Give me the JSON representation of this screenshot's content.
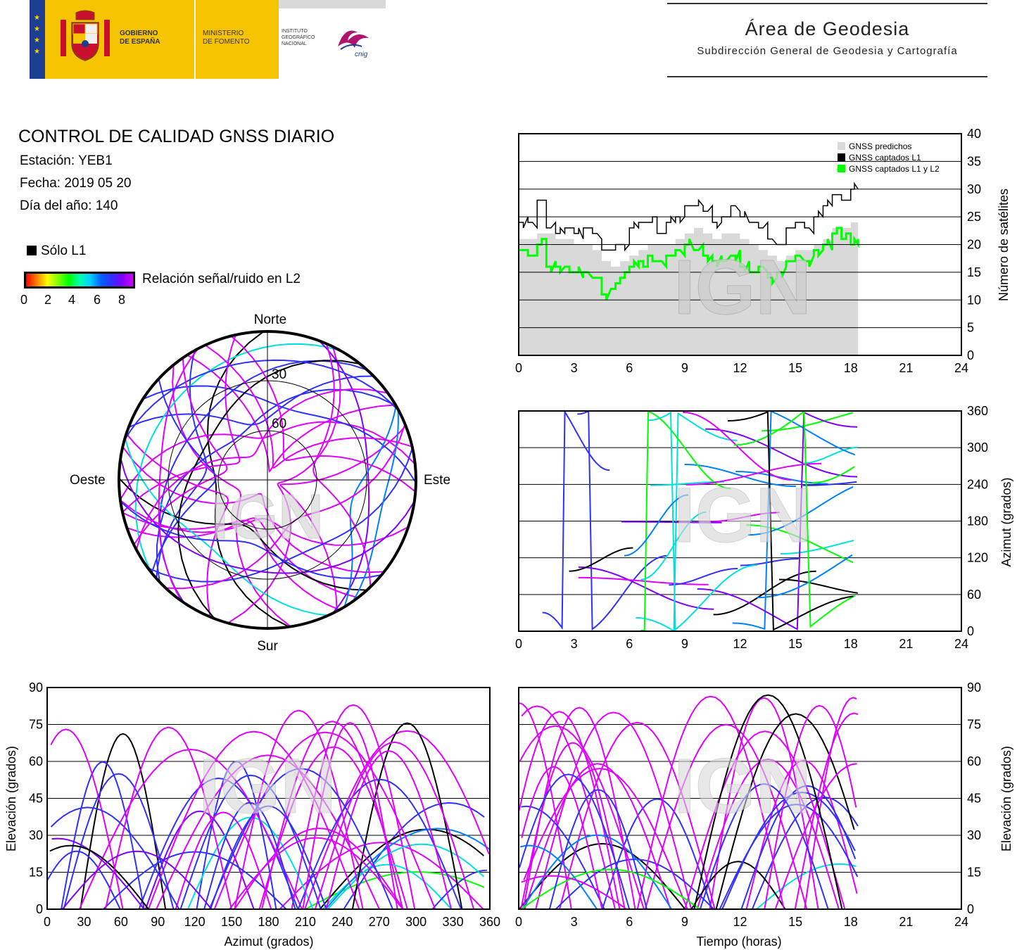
{
  "header": {
    "gobierno": [
      "GOBIERNO",
      "DE ESPAÑA"
    ],
    "ministerio": [
      "MINISTERIO",
      "DE FOMENTO"
    ],
    "instituto": [
      "INSTITUTO",
      "GEOGRÁFICO",
      "NACIONAL"
    ],
    "cnig_logo_text": "cnig",
    "area_title": "Área de Geodesia",
    "area_subtitle": "Subdirección General de Geodesia y Cartografía"
  },
  "report": {
    "title": "CONTROL DE CALIDAD GNSS DIARIO",
    "station": "Estación: YEB1",
    "date": "Fecha: 2019 05 20",
    "doy": "Día del año: 140"
  },
  "legend": {
    "l1_only": "Sólo L1",
    "snr_label": "Relación señal/ruido en L2",
    "snr_ticks": [
      "0",
      "2",
      "4",
      "6",
      "8"
    ]
  },
  "watermark": "IGN",
  "colors": {
    "snr_scale": [
      "#ff0000",
      "#ff8000",
      "#ffff00",
      "#00ff00",
      "#00e0e0",
      "#0080ff",
      "#3030ff",
      "#8000ff",
      "#e000ff"
    ],
    "l1_only": "#000000",
    "predicted": "#d9d9d9",
    "captured_l1": "#000000",
    "captured_l1l2": "#00ff00"
  },
  "chart_data": [
    {
      "id": "sat-count",
      "type": "line",
      "title": "",
      "xlabel": "",
      "ylabel": "Número de satélites",
      "xlim": [
        0,
        24
      ],
      "ylim": [
        0,
        40
      ],
      "xticks": [
        "0",
        "3",
        "6",
        "9",
        "12",
        "15",
        "18",
        "21",
        "24"
      ],
      "yticks": [
        "0",
        "5",
        "10",
        "15",
        "20",
        "25",
        "30",
        "35",
        "40"
      ],
      "grid": "horizontal",
      "legend_position": "top-right",
      "x": [
        0,
        0.5,
        1,
        1.5,
        2,
        2.5,
        3,
        3.5,
        4,
        4.5,
        5,
        5.5,
        6,
        6.5,
        7,
        7.5,
        8,
        8.5,
        9,
        9.5,
        10,
        10.5,
        11,
        11.5,
        12,
        12.5,
        13,
        13.5,
        14,
        14.5,
        15,
        15.5,
        16,
        16.5,
        17,
        17.5,
        18,
        18.4
      ],
      "series": [
        {
          "name": "GNSS predichos",
          "type": "area",
          "values": [
            21,
            21,
            22,
            22,
            21,
            21,
            20,
            20,
            19,
            17,
            16,
            17,
            18,
            19,
            20,
            20,
            20,
            21,
            22,
            23,
            22,
            21,
            22,
            22,
            21,
            20,
            19,
            18,
            17,
            18,
            19,
            19,
            20,
            21,
            23,
            23,
            24,
            24
          ]
        },
        {
          "name": "GNSS captados L1",
          "type": "step",
          "values": [
            24,
            24,
            28,
            23,
            22,
            23,
            22,
            23,
            22,
            19,
            19,
            20,
            23,
            24,
            24,
            22,
            24,
            25,
            27,
            27,
            26,
            24,
            25,
            27,
            25,
            24,
            23,
            21,
            20,
            23,
            24,
            23,
            25,
            27,
            29,
            28,
            30,
            30
          ]
        },
        {
          "name": "GNSS captados L1 y L2",
          "type": "step",
          "values": [
            19,
            18,
            20,
            16,
            16,
            16,
            15,
            15,
            14,
            11,
            12,
            14,
            16,
            17,
            18,
            17,
            18,
            19,
            20,
            19,
            18,
            17,
            17,
            18,
            16,
            15,
            16,
            14,
            15,
            17,
            18,
            17,
            19,
            20,
            22,
            21,
            20,
            21
          ]
        }
      ]
    },
    {
      "id": "sky-plot",
      "type": "scatter",
      "title": "",
      "coordinate_system": "polar",
      "direction_labels": {
        "north": "Norte",
        "south": "Sur",
        "east": "Este",
        "west": "Oeste"
      },
      "elevation_rings": [
        "30",
        "60"
      ],
      "note_series": "satellite tracks (azimuth, elevation), colored by L2 SNR"
    },
    {
      "id": "azimuth-time",
      "type": "scatter",
      "title": "",
      "xlabel": "",
      "ylabel": "Azimut (grados)",
      "xlim": [
        0,
        24
      ],
      "ylim": [
        0,
        360
      ],
      "xticks": [
        "0",
        "3",
        "6",
        "9",
        "12",
        "15",
        "18",
        "21",
        "24"
      ],
      "yticks": [
        "0",
        "60",
        "120",
        "180",
        "240",
        "300",
        "360"
      ],
      "grid": "horizontal"
    },
    {
      "id": "elev-azimuth",
      "type": "scatter",
      "title": "",
      "xlabel": "Azimut (grados)",
      "ylabel": "Elevación (grados)",
      "xlim": [
        0,
        360
      ],
      "ylim": [
        0,
        90
      ],
      "xticks": [
        "0",
        "30",
        "60",
        "90",
        "120",
        "150",
        "180",
        "210",
        "240",
        "270",
        "300",
        "330",
        "360"
      ],
      "yticks": [
        "0",
        "15",
        "30",
        "45",
        "60",
        "75",
        "90"
      ],
      "grid": "horizontal"
    },
    {
      "id": "elev-time",
      "type": "scatter",
      "title": "",
      "xlabel": "Tiempo (horas)",
      "ylabel": "Elevación (grados)",
      "xlim": [
        0,
        24
      ],
      "ylim": [
        0,
        90
      ],
      "xticks": [
        "0",
        "3",
        "6",
        "9",
        "12",
        "15",
        "18",
        "21",
        "24"
      ],
      "yticks": [
        "0",
        "15",
        "30",
        "45",
        "60",
        "75",
        "90"
      ],
      "grid": "horizontal"
    }
  ]
}
